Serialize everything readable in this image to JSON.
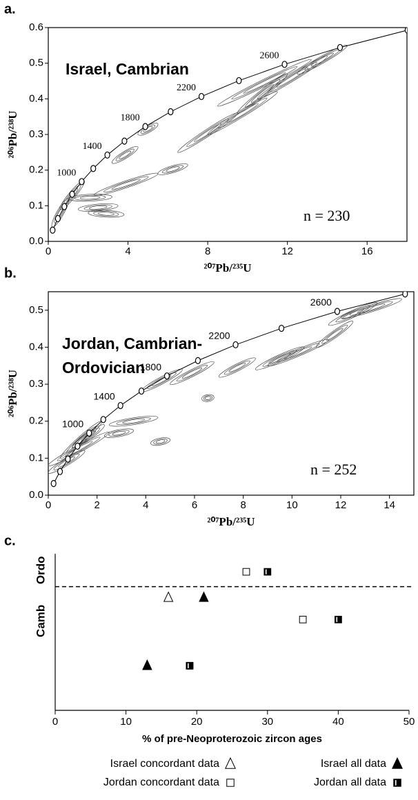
{
  "chart_data": [
    {
      "type": "concordia",
      "panel_label": "a.",
      "title": [
        "Israel, Cambrian"
      ],
      "annotation": "n = 230",
      "x_label": "²⁰⁷Pb/²³⁵U",
      "y_label": "²⁰⁶Pb/²³⁸U",
      "color": "#444",
      "xlim": [
        0,
        18
      ],
      "xticks": [
        0,
        4,
        8,
        12,
        16
      ],
      "ylim": [
        0,
        0.6
      ],
      "yticks": [
        {
          "value": 0,
          "label": "0.0"
        },
        0.1,
        0.2,
        0.3,
        0.4,
        0.5,
        0.6
      ],
      "concordia": {
        "x": [
          0.2177,
          0.4818,
          0.805,
          1.199,
          1.676,
          2.257,
          2.962,
          3.822,
          4.868,
          6.139,
          7.686,
          9.567,
          11.857,
          14.641,
          18.03
        ],
        "y": [
          0.0315,
          0.064,
          0.0976,
          0.1324,
          0.1678,
          0.2045,
          0.2423,
          0.2814,
          0.3222,
          0.3638,
          0.4066,
          0.4511,
          0.4968,
          0.544,
          0.5928
        ]
      },
      "age_labels": [
        {
          "text": "1000",
          "x": 1.676,
          "y": 0.1678
        },
        {
          "text": "1400",
          "x": 2.962,
          "y": 0.2423
        },
        {
          "text": "1800",
          "x": 4.868,
          "y": 0.3222
        },
        {
          "text": "2200",
          "x": 7.686,
          "y": 0.4066
        },
        {
          "text": "2600",
          "x": 11.857,
          "y": 0.4968
        }
      ],
      "ellipses": [
        {
          "x": [
            0.2,
            1.0
          ],
          "y": [
            0.04,
            0.12
          ]
        },
        {
          "x": [
            0.6,
            1.8
          ],
          "y": [
            0.09,
            0.17
          ]
        },
        {
          "x": [
            1.0,
            3.2
          ],
          "y": [
            0.12,
            0.125
          ]
        },
        {
          "x": [
            1.5,
            3.5
          ],
          "y": [
            0.09,
            0.1
          ]
        },
        {
          "x": [
            2.0,
            3.8
          ],
          "y": [
            0.08,
            0.075
          ]
        },
        {
          "x": [
            2.3,
            5.5
          ],
          "y": [
            0.13,
            0.19
          ]
        },
        {
          "x": [
            5.5,
            7.0
          ],
          "y": [
            0.19,
            0.215
          ]
        },
        {
          "x": [
            3.2,
            4.5
          ],
          "y": [
            0.22,
            0.265
          ]
        },
        {
          "x": [
            4.5,
            5.5
          ],
          "y": [
            0.3,
            0.33
          ]
        },
        {
          "x": [
            6.5,
            9.5
          ],
          "y": [
            0.25,
            0.36
          ]
        },
        {
          "x": [
            8,
            11.5
          ],
          "y": [
            0.3,
            0.42
          ]
        },
        {
          "x": [
            9.5,
            12
          ],
          "y": [
            0.36,
            0.47
          ]
        },
        {
          "x": [
            8.5,
            13.2
          ],
          "y": [
            0.38,
            0.51
          ]
        },
        {
          "x": [
            12.5,
            15
          ],
          "y": [
            0.47,
            0.55
          ]
        },
        {
          "x": [
            10.5,
            14
          ],
          "y": [
            0.4,
            0.52
          ]
        }
      ]
    },
    {
      "type": "concordia",
      "panel_label": "b.",
      "title": [
        "Jordan, Cambrian-",
        "Ordovician"
      ],
      "annotation": "n = 252",
      "x_label": "²⁰⁷Pb/²³⁵U",
      "y_label": "²⁰⁶Pb/²³⁸U",
      "color": "#444",
      "xlim": [
        0,
        15
      ],
      "xticks": [
        0,
        2,
        4,
        6,
        8,
        10,
        12,
        14
      ],
      "ylim": [
        0,
        0.55
      ],
      "yticks": [
        {
          "value": 0,
          "label": "0.0"
        },
        0.1,
        0.2,
        0.3,
        0.4,
        0.5
      ],
      "concordia": {
        "x": [
          0.2177,
          0.4818,
          0.805,
          1.199,
          1.676,
          2.257,
          2.962,
          3.822,
          4.868,
          6.139,
          7.686,
          9.567,
          11.857,
          14.641
        ],
        "y": [
          0.0315,
          0.064,
          0.0976,
          0.1324,
          0.1678,
          0.2045,
          0.2423,
          0.2814,
          0.3222,
          0.3638,
          0.4066,
          0.4511,
          0.4968,
          0.544
        ]
      },
      "age_labels": [
        {
          "text": "1000",
          "x": 1.676,
          "y": 0.1678
        },
        {
          "text": "1400",
          "x": 2.962,
          "y": 0.2423
        },
        {
          "text": "1800",
          "x": 4.868,
          "y": 0.3222
        },
        {
          "text": "2200",
          "x": 7.686,
          "y": 0.4066
        },
        {
          "text": "2600",
          "x": 11.857,
          "y": 0.4968
        }
      ],
      "ellipses": [
        {
          "x": [
            0,
            1.5
          ],
          "y": [
            0.06,
            0.12
          ]
        },
        {
          "x": [
            0,
            2.5
          ],
          "y": [
            0.08,
            0.17
          ]
        },
        {
          "x": [
            0.5,
            2.2
          ],
          "y": [
            0.1,
            0.2
          ]
        },
        {
          "x": [
            1,
            2.3
          ],
          "y": [
            0.13,
            0.19
          ]
        },
        {
          "x": [
            2.3,
            3.5
          ],
          "y": [
            0.16,
            0.175
          ]
        },
        {
          "x": [
            2.5,
            4.5
          ],
          "y": [
            0.19,
            0.21
          ]
        },
        {
          "x": [
            4.2,
            5.0
          ],
          "y": [
            0.14,
            0.15
          ]
        },
        {
          "x": [
            3.8,
            5.5
          ],
          "y": [
            0.28,
            0.34
          ]
        },
        {
          "x": [
            5.0,
            6.8
          ],
          "y": [
            0.3,
            0.36
          ]
        },
        {
          "x": [
            6.3,
            6.8
          ],
          "y": [
            0.26,
            0.265
          ]
        },
        {
          "x": [
            7.0,
            8.5
          ],
          "y": [
            0.32,
            0.37
          ]
        },
        {
          "x": [
            8.5,
            10.5
          ],
          "y": [
            0.34,
            0.4
          ]
        },
        {
          "x": [
            9,
            11.5
          ],
          "y": [
            0.35,
            0.42
          ]
        },
        {
          "x": [
            11,
            12.5
          ],
          "y": [
            0.4,
            0.47
          ]
        },
        {
          "x": [
            11.5,
            13.5
          ],
          "y": [
            0.46,
            0.52
          ]
        },
        {
          "x": [
            12,
            14.5
          ],
          "y": [
            0.48,
            0.53
          ]
        }
      ]
    },
    {
      "type": "scatter",
      "panel_label": "c.",
      "categories": [
        "Ordo",
        "Camb",
        null,
        null
      ],
      "x_label": "% of pre-Neoproterozoic zircon ages",
      "color": "#000",
      "xlim": [
        0,
        50
      ],
      "xticks": [
        0,
        10,
        20,
        30,
        40,
        50
      ],
      "series": [
        {
          "name": "Israel concordant data",
          "marker": "triangle-open",
          "values": [
            null,
            16,
            null,
            13
          ]
        },
        {
          "name": "Israel all data",
          "marker": "triangle-filled",
          "values": [
            null,
            21,
            null,
            13
          ]
        },
        {
          "name": "Jordan concordant data",
          "marker": "square-open",
          "values": [
            27,
            null,
            35,
            19
          ]
        },
        {
          "name": "Jordan all data",
          "marker": "square-filled",
          "values": [
            30,
            null,
            40,
            19
          ]
        }
      ]
    }
  ]
}
